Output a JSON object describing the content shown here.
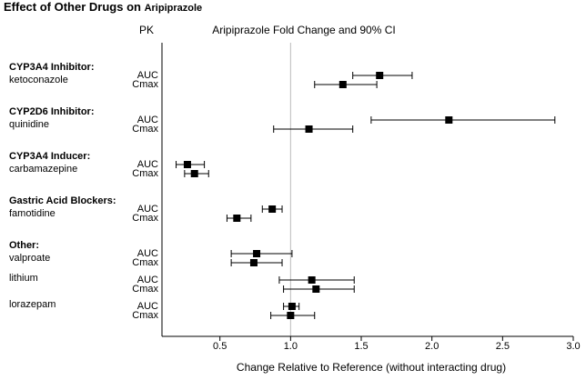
{
  "chart_data": {
    "type": "forest",
    "title": "Effect of Other Drugs on",
    "title_drug": "Aripiprazole",
    "pk_header": "PK",
    "plot_title": "Aripiprazole Fold Change and 90% CI",
    "xlabel": "Change Relative to Reference (without interacting drug)",
    "xlim": [
      0.09,
      3.0
    ],
    "xticks": [
      0.5,
      {
        "value": 1,
        "label": "1.0"
      },
      1.5,
      {
        "value": 2,
        "label": "2.0"
      },
      2.5,
      {
        "value": 3,
        "label": "3.0"
      }
    ],
    "reference_line": 1,
    "groups": [
      {
        "label": "CYP3A4 Inhibitor:",
        "drugs": [
          {
            "name": "ketoconazole",
            "measures": [
              {
                "name": "AUC",
                "value": 1.63,
                "ci": [
                  1.44,
                  1.86
                ]
              },
              {
                "name": "Cmax",
                "value": 1.37,
                "ci": [
                  1.17,
                  1.61
                ]
              }
            ]
          }
        ]
      },
      {
        "label": "CYP2D6 Inhibitor:",
        "drugs": [
          {
            "name": "quinidine",
            "measures": [
              {
                "name": "AUC",
                "value": 2.12,
                "ci": [
                  1.57,
                  2.87
                ]
              },
              {
                "name": "Cmax",
                "value": 1.13,
                "ci": [
                  0.88,
                  1.44
                ]
              }
            ]
          }
        ]
      },
      {
        "label": "CYP3A4 Inducer:",
        "drugs": [
          {
            "name": "carbamazepine",
            "measures": [
              {
                "name": "AUC",
                "value": 0.27,
                "ci": [
                  0.19,
                  0.39
                ]
              },
              {
                "name": "Cmax",
                "value": 0.32,
                "ci": [
                  0.25,
                  0.42
                ]
              }
            ]
          }
        ]
      },
      {
        "label": "Gastric Acid Blockers:",
        "drugs": [
          {
            "name": "famotidine",
            "measures": [
              {
                "name": "AUC",
                "value": 0.87,
                "ci": [
                  0.8,
                  0.94
                ]
              },
              {
                "name": "Cmax",
                "value": 0.62,
                "ci": [
                  0.55,
                  0.72
                ]
              }
            ]
          }
        ]
      },
      {
        "label": "Other:",
        "drugs": [
          {
            "name": "valproate",
            "measures": [
              {
                "name": "AUC",
                "value": 0.76,
                "ci": [
                  0.58,
                  1.01
                ]
              },
              {
                "name": "Cmax",
                "value": 0.74,
                "ci": [
                  0.58,
                  0.94
                ]
              }
            ]
          },
          {
            "name": "lithium",
            "measures": [
              {
                "name": "AUC",
                "value": 1.15,
                "ci": [
                  0.92,
                  1.45
                ]
              },
              {
                "name": "Cmax",
                "value": 1.18,
                "ci": [
                  0.95,
                  1.45
                ]
              }
            ]
          },
          {
            "name": "lorazepam",
            "measures": [
              {
                "name": "AUC",
                "value": 1.01,
                "ci": [
                  0.95,
                  1.06
                ]
              },
              {
                "name": "Cmax",
                "value": 1.0,
                "ci": [
                  0.86,
                  1.17
                ]
              }
            ]
          }
        ]
      }
    ]
  }
}
